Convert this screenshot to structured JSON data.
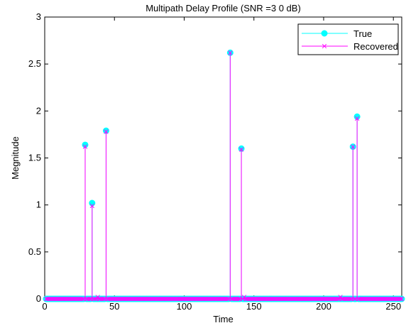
{
  "chart_data": {
    "type": "scatter",
    "subtype": "stem",
    "title": "Multipath Delay Profile (SNR =3 0 dB)",
    "xlabel": "Time",
    "ylabel": "Megnitude",
    "xlim": [
      0,
      256
    ],
    "ylim": [
      0,
      3
    ],
    "xticks": [
      0,
      50,
      100,
      150,
      200,
      250
    ],
    "yticks": [
      0,
      0.5,
      1,
      1.5,
      2,
      2.5,
      3
    ],
    "grid": false,
    "legend_position": "top-right",
    "series": [
      {
        "name": "True",
        "color": "#00ffff",
        "marker": "filled-circle",
        "points": [
          {
            "x": 29,
            "y": 1.64
          },
          {
            "x": 34,
            "y": 1.02
          },
          {
            "x": 44,
            "y": 1.79
          },
          {
            "x": 133,
            "y": 2.62
          },
          {
            "x": 141,
            "y": 1.6
          },
          {
            "x": 221,
            "y": 1.62
          },
          {
            "x": 224,
            "y": 1.94
          }
        ]
      },
      {
        "name": "Recovered",
        "color": "#ff00ff",
        "marker": "x",
        "points": [
          {
            "x": 29,
            "y": 1.62
          },
          {
            "x": 34,
            "y": 0.99
          },
          {
            "x": 38,
            "y": 0.02
          },
          {
            "x": 44,
            "y": 1.78
          },
          {
            "x": 133,
            "y": 2.62
          },
          {
            "x": 141,
            "y": 1.59
          },
          {
            "x": 143,
            "y": 0.02
          },
          {
            "x": 212,
            "y": 0.02
          },
          {
            "x": 221,
            "y": 1.62
          },
          {
            "x": 224,
            "y": 1.92
          }
        ]
      }
    ]
  }
}
